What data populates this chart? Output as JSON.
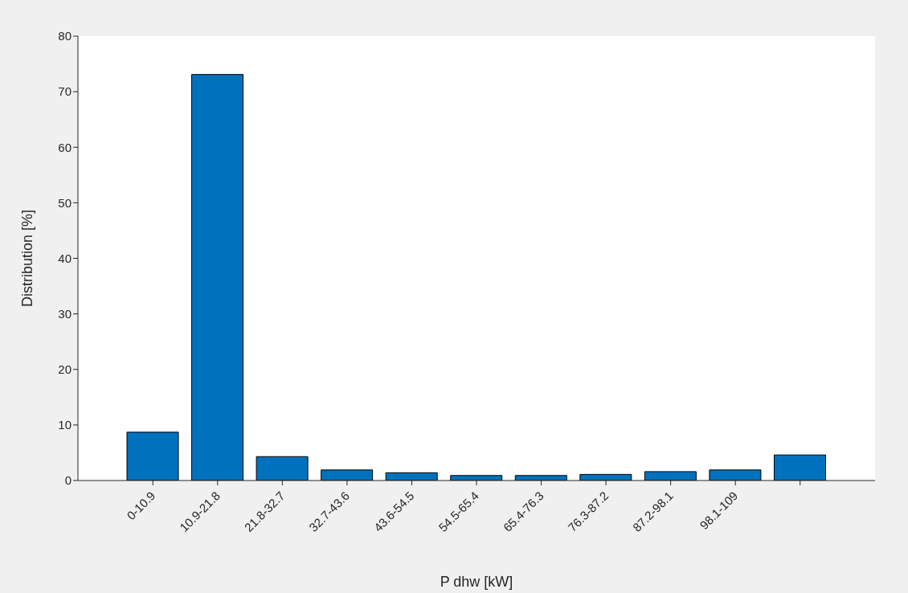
{
  "chart_data": {
    "type": "bar",
    "xlabel": "P dhw [kW]",
    "ylabel": "Distribution [%]",
    "categories": [
      "0-10.9",
      "10.9-21.8",
      "21.8-32.7",
      "32.7-43.6",
      "43.6-54.5",
      "54.5-65.4",
      "65.4-76.3",
      "76.3-87.2",
      "87.2-98.1",
      "98.1-109",
      null
    ],
    "values": [
      8.7,
      73.1,
      4.3,
      1.9,
      1.4,
      0.9,
      0.9,
      1.1,
      1.6,
      1.9,
      4.6
    ],
    "color": "#0072bd",
    "ylim": [
      0,
      80
    ],
    "yticks": [
      0,
      10,
      20,
      30,
      40,
      50,
      60,
      70,
      80
    ],
    "grid": false,
    "legend": false
  }
}
